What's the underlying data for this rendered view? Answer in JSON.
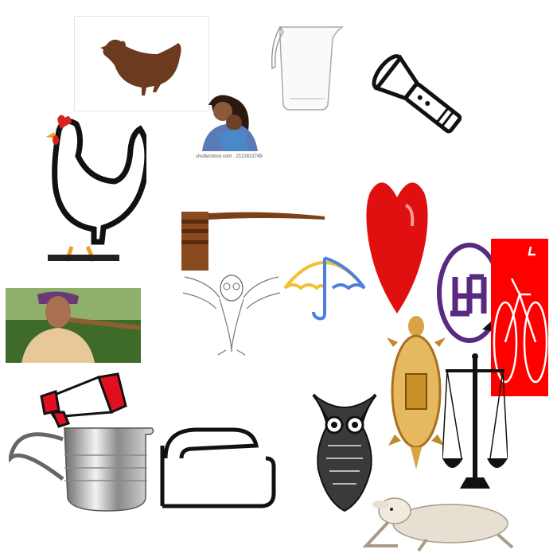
{
  "collage": {
    "items": [
      {
        "id": "hen-silhouette",
        "icon": "hen-silhouette-icon",
        "color": "#6b3a1f"
      },
      {
        "id": "mother-child",
        "icon": "mother-child-icon",
        "caption": "shutterstock.com · 2112813749"
      },
      {
        "id": "measuring-jug",
        "icon": "measuring-jug-icon"
      },
      {
        "id": "flashlight",
        "icon": "flashlight-icon"
      },
      {
        "id": "white-hen",
        "icon": "white-hen-icon"
      },
      {
        "id": "gavel",
        "icon": "gavel-icon"
      },
      {
        "id": "heart",
        "icon": "heart-icon",
        "color": "#e01010"
      },
      {
        "id": "swastika-circle",
        "icon": "swastika-icon",
        "color": "#5a2a80"
      },
      {
        "id": "bicycle-red",
        "icon": "bicycle-icon",
        "color": "#ff0000"
      },
      {
        "id": "farmer-photo",
        "icon": "farmer-photo-icon"
      },
      {
        "id": "owl-outline",
        "icon": "owl-outline-icon"
      },
      {
        "id": "umbrella",
        "icon": "umbrella-icon"
      },
      {
        "id": "gold-turtle",
        "icon": "turtle-icon",
        "color": "#d9a441"
      },
      {
        "id": "scales",
        "icon": "scales-of-justice-icon"
      },
      {
        "id": "megaphone",
        "icon": "megaphone-icon",
        "color": "#e01020"
      },
      {
        "id": "steel-jug",
        "icon": "steel-jug-icon"
      },
      {
        "id": "outline-jug",
        "icon": "outline-jug-icon"
      },
      {
        "id": "owl-tribal",
        "icon": "owl-tribal-icon"
      },
      {
        "id": "lamb",
        "icon": "lamb-icon"
      }
    ]
  }
}
